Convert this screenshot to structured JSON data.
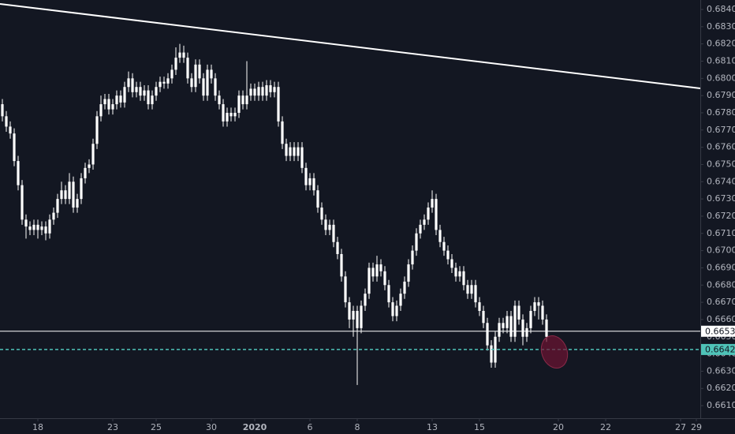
{
  "chart_data": {
    "type": "candlestick",
    "color": "#ffffff",
    "xlim": [
      -0.6,
      177
    ],
    "ylim": [
      0.66027,
      0.68455
    ],
    "yticks": [
      {
        "value": 0.684,
        "label": "0.68400"
      },
      {
        "value": 0.683,
        "label": "0.68300"
      },
      {
        "value": 0.682,
        "label": "0.68200"
      },
      {
        "value": 0.681,
        "label": "0.68100"
      },
      {
        "value": 0.68,
        "label": "0.68000"
      },
      {
        "value": 0.679,
        "label": "0.67900"
      },
      {
        "value": 0.678,
        "label": "0.67800"
      },
      {
        "value": 0.677,
        "label": "0.67700"
      },
      {
        "value": 0.676,
        "label": "0.67600"
      },
      {
        "value": 0.675,
        "label": "0.67500"
      },
      {
        "value": 0.674,
        "label": "0.67400"
      },
      {
        "value": 0.673,
        "label": "0.67300"
      },
      {
        "value": 0.672,
        "label": "0.67200"
      },
      {
        "value": 0.671,
        "label": "0.67100"
      },
      {
        "value": 0.67,
        "label": "0.67000"
      },
      {
        "value": 0.669,
        "label": "0.66900"
      },
      {
        "value": 0.668,
        "label": "0.66800"
      },
      {
        "value": 0.667,
        "label": "0.66700"
      },
      {
        "value": 0.666,
        "label": "0.66600"
      },
      {
        "value": 0.665,
        "label": "0.66500"
      },
      {
        "value": 0.664,
        "label": "0.66400"
      },
      {
        "value": 0.663,
        "label": "0.66300"
      },
      {
        "value": 0.662,
        "label": "0.66200"
      },
      {
        "value": 0.661,
        "label": "0.66100"
      }
    ],
    "xticks": [
      {
        "value": 9,
        "label": "18"
      },
      {
        "value": 28,
        "label": "23"
      },
      {
        "value": 39,
        "label": "25"
      },
      {
        "value": 53,
        "label": "30"
      },
      {
        "value": 64,
        "label": "2020"
      },
      {
        "value": 78,
        "label": "6"
      },
      {
        "value": 90,
        "label": "8"
      },
      {
        "value": 109,
        "label": "13"
      },
      {
        "value": 121,
        "label": "15"
      },
      {
        "value": 141,
        "label": "20"
      },
      {
        "value": 153,
        "label": "22"
      },
      {
        "value": 172,
        "label": "27"
      },
      {
        "value": 176,
        "label": "29"
      }
    ],
    "trendline": {
      "start": 0.68432,
      "end": 0.67942,
      "color": "#ffffff"
    },
    "price_lines": [
      {
        "value": 0.66532,
        "label": "0.66532",
        "color": "#ffffff",
        "style": "solid"
      },
      {
        "value": 0.66426,
        "label": "0.66426",
        "color": "#4fc3b8",
        "style": "dashed"
      }
    ],
    "candles": [
      [
        0.6785,
        0.6788,
        0.6775,
        0.6778
      ],
      [
        0.6778,
        0.6781,
        0.6769,
        0.6772
      ],
      [
        0.6772,
        0.6775,
        0.6765,
        0.6768
      ],
      [
        0.6768,
        0.6771,
        0.6749,
        0.6752
      ],
      [
        0.6752,
        0.6755,
        0.6735,
        0.6738
      ],
      [
        0.6738,
        0.6741,
        0.6715,
        0.6718
      ],
      [
        0.6718,
        0.6721,
        0.6707,
        0.6714
      ],
      [
        0.6714,
        0.6717,
        0.6709,
        0.6712
      ],
      [
        0.6712,
        0.6718,
        0.6709,
        0.6715
      ],
      [
        0.6715,
        0.6718,
        0.6707,
        0.6712
      ],
      [
        0.6712,
        0.6717,
        0.6709,
        0.6714
      ],
      [
        0.6714,
        0.6717,
        0.6706,
        0.671
      ],
      [
        0.671,
        0.6721,
        0.6707,
        0.6718
      ],
      [
        0.6718,
        0.6725,
        0.6715,
        0.6722
      ],
      [
        0.6722,
        0.6733,
        0.6719,
        0.673
      ],
      [
        0.673,
        0.674,
        0.6727,
        0.6735
      ],
      [
        0.6735,
        0.6738,
        0.6727,
        0.673
      ],
      [
        0.673,
        0.6745,
        0.6727,
        0.674
      ],
      [
        0.674,
        0.6743,
        0.6722,
        0.6725
      ],
      [
        0.6725,
        0.6733,
        0.6722,
        0.673
      ],
      [
        0.673,
        0.6745,
        0.6727,
        0.6742
      ],
      [
        0.6742,
        0.6751,
        0.6739,
        0.6748
      ],
      [
        0.6748,
        0.6753,
        0.6745,
        0.675
      ],
      [
        0.675,
        0.6765,
        0.6747,
        0.6762
      ],
      [
        0.6762,
        0.6781,
        0.6759,
        0.6778
      ],
      [
        0.6778,
        0.679,
        0.6775,
        0.6785
      ],
      [
        0.6785,
        0.6791,
        0.6782,
        0.6788
      ],
      [
        0.6788,
        0.6791,
        0.6779,
        0.6782
      ],
      [
        0.6782,
        0.6788,
        0.6779,
        0.6785
      ],
      [
        0.6785,
        0.6793,
        0.6782,
        0.679
      ],
      [
        0.679,
        0.6793,
        0.6783,
        0.6786
      ],
      [
        0.6786,
        0.6798,
        0.6783,
        0.6795
      ],
      [
        0.6795,
        0.6804,
        0.6792,
        0.68
      ],
      [
        0.68,
        0.6803,
        0.6789,
        0.6792
      ],
      [
        0.6792,
        0.6798,
        0.6789,
        0.6795
      ],
      [
        0.6795,
        0.6798,
        0.6787,
        0.679
      ],
      [
        0.679,
        0.6796,
        0.6787,
        0.6793
      ],
      [
        0.6793,
        0.6796,
        0.6782,
        0.6785
      ],
      [
        0.6785,
        0.6793,
        0.6782,
        0.679
      ],
      [
        0.679,
        0.6798,
        0.6787,
        0.6795
      ],
      [
        0.6795,
        0.6801,
        0.6792,
        0.6798
      ],
      [
        0.6798,
        0.6801,
        0.6794,
        0.6797
      ],
      [
        0.6797,
        0.6803,
        0.6794,
        0.68
      ],
      [
        0.68,
        0.6808,
        0.6797,
        0.6805
      ],
      [
        0.6805,
        0.6818,
        0.6802,
        0.6812
      ],
      [
        0.6812,
        0.682,
        0.6809,
        0.6815
      ],
      [
        0.6815,
        0.6819,
        0.6809,
        0.6812
      ],
      [
        0.6812,
        0.6815,
        0.6797,
        0.68
      ],
      [
        0.68,
        0.6803,
        0.6792,
        0.6795
      ],
      [
        0.6795,
        0.6811,
        0.6792,
        0.6808
      ],
      [
        0.6808,
        0.6811,
        0.6797,
        0.68
      ],
      [
        0.68,
        0.6803,
        0.6787,
        0.679
      ],
      [
        0.679,
        0.6808,
        0.6787,
        0.6805
      ],
      [
        0.6805,
        0.6808,
        0.6797,
        0.68
      ],
      [
        0.68,
        0.6803,
        0.6787,
        0.679
      ],
      [
        0.679,
        0.6793,
        0.6782,
        0.6785
      ],
      [
        0.6785,
        0.6788,
        0.6772,
        0.6775
      ],
      [
        0.6775,
        0.6783,
        0.6772,
        0.678
      ],
      [
        0.678,
        0.6783,
        0.6775,
        0.6778
      ],
      [
        0.6778,
        0.6783,
        0.6775,
        0.678
      ],
      [
        0.678,
        0.6793,
        0.6777,
        0.679
      ],
      [
        0.679,
        0.6793,
        0.6782,
        0.6785
      ],
      [
        0.6785,
        0.681,
        0.6782,
        0.679
      ],
      [
        0.679,
        0.6797,
        0.6787,
        0.6794
      ],
      [
        0.6794,
        0.6797,
        0.6787,
        0.679
      ],
      [
        0.679,
        0.6798,
        0.6787,
        0.6795
      ],
      [
        0.6795,
        0.6798,
        0.6787,
        0.679
      ],
      [
        0.679,
        0.6799,
        0.6787,
        0.6796
      ],
      [
        0.6796,
        0.6799,
        0.6789,
        0.6792
      ],
      [
        0.6792,
        0.6798,
        0.6789,
        0.6795
      ],
      [
        0.6795,
        0.6798,
        0.6772,
        0.6775
      ],
      [
        0.6775,
        0.6778,
        0.6759,
        0.6762
      ],
      [
        0.6762,
        0.6765,
        0.6752,
        0.6755
      ],
      [
        0.6755,
        0.6763,
        0.6752,
        0.676
      ],
      [
        0.676,
        0.6763,
        0.6752,
        0.6755
      ],
      [
        0.6755,
        0.6763,
        0.6752,
        0.676
      ],
      [
        0.676,
        0.6763,
        0.6745,
        0.6748
      ],
      [
        0.6748,
        0.6751,
        0.6735,
        0.6738
      ],
      [
        0.6738,
        0.6745,
        0.6735,
        0.6742
      ],
      [
        0.6742,
        0.6745,
        0.6732,
        0.6735
      ],
      [
        0.6735,
        0.6738,
        0.6722,
        0.6725
      ],
      [
        0.6725,
        0.6728,
        0.6715,
        0.6718
      ],
      [
        0.6718,
        0.6721,
        0.6709,
        0.6712
      ],
      [
        0.6712,
        0.6718,
        0.6709,
        0.6715
      ],
      [
        0.6715,
        0.6718,
        0.6702,
        0.6705
      ],
      [
        0.6705,
        0.6708,
        0.6695,
        0.6698
      ],
      [
        0.6698,
        0.6701,
        0.6682,
        0.6685
      ],
      [
        0.6685,
        0.6688,
        0.6667,
        0.667
      ],
      [
        0.667,
        0.6673,
        0.6655,
        0.666
      ],
      [
        0.666,
        0.6668,
        0.665,
        0.6665
      ],
      [
        0.6665,
        0.6668,
        0.6622,
        0.6655
      ],
      [
        0.6655,
        0.6671,
        0.6652,
        0.6668
      ],
      [
        0.6668,
        0.6678,
        0.6665,
        0.6675
      ],
      [
        0.6675,
        0.6693,
        0.6672,
        0.669
      ],
      [
        0.669,
        0.6693,
        0.6682,
        0.6685
      ],
      [
        0.6685,
        0.6697,
        0.6682,
        0.6692
      ],
      [
        0.6692,
        0.6695,
        0.6685,
        0.6688
      ],
      [
        0.6688,
        0.6691,
        0.6677,
        0.668
      ],
      [
        0.668,
        0.6683,
        0.6667,
        0.667
      ],
      [
        0.667,
        0.6673,
        0.6659,
        0.6662
      ],
      [
        0.6662,
        0.6671,
        0.6659,
        0.6668
      ],
      [
        0.6668,
        0.6678,
        0.6665,
        0.6675
      ],
      [
        0.6675,
        0.6685,
        0.6672,
        0.6682
      ],
      [
        0.6682,
        0.6695,
        0.6679,
        0.6692
      ],
      [
        0.6692,
        0.6703,
        0.6689,
        0.67
      ],
      [
        0.67,
        0.6713,
        0.6697,
        0.671
      ],
      [
        0.671,
        0.6718,
        0.6707,
        0.6715
      ],
      [
        0.6715,
        0.6721,
        0.6712,
        0.6718
      ],
      [
        0.6718,
        0.6728,
        0.6715,
        0.6725
      ],
      [
        0.6725,
        0.6735,
        0.6722,
        0.673
      ],
      [
        0.673,
        0.6733,
        0.6709,
        0.6712
      ],
      [
        0.6712,
        0.6715,
        0.6702,
        0.6705
      ],
      [
        0.6705,
        0.6708,
        0.6697,
        0.67
      ],
      [
        0.67,
        0.6703,
        0.6692,
        0.6695
      ],
      [
        0.6695,
        0.6698,
        0.6687,
        0.669
      ],
      [
        0.669,
        0.6693,
        0.6682,
        0.6685
      ],
      [
        0.6685,
        0.6691,
        0.6682,
        0.6688
      ],
      [
        0.6688,
        0.6691,
        0.6677,
        0.668
      ],
      [
        0.668,
        0.6683,
        0.6672,
        0.6675
      ],
      [
        0.6675,
        0.6683,
        0.6672,
        0.668
      ],
      [
        0.668,
        0.6683,
        0.6667,
        0.667
      ],
      [
        0.667,
        0.6673,
        0.6662,
        0.6665
      ],
      [
        0.6665,
        0.6668,
        0.6655,
        0.6658
      ],
      [
        0.6658,
        0.6661,
        0.6642,
        0.6645
      ],
      [
        0.6645,
        0.6648,
        0.6632,
        0.6635
      ],
      [
        0.6635,
        0.6653,
        0.6632,
        0.665
      ],
      [
        0.665,
        0.6661,
        0.6647,
        0.6658
      ],
      [
        0.6658,
        0.6661,
        0.6652,
        0.6655
      ],
      [
        0.6655,
        0.6665,
        0.6652,
        0.6662
      ],
      [
        0.6662,
        0.6665,
        0.6647,
        0.665
      ],
      [
        0.665,
        0.6671,
        0.6647,
        0.6668
      ],
      [
        0.6668,
        0.6671,
        0.6657,
        0.666
      ],
      [
        0.666,
        0.6663,
        0.6645,
        0.665
      ],
      [
        0.665,
        0.6658,
        0.6647,
        0.6655
      ],
      [
        0.6655,
        0.6668,
        0.6652,
        0.6665
      ],
      [
        0.6665,
        0.6673,
        0.6662,
        0.667
      ],
      [
        0.667,
        0.6673,
        0.666,
        0.6668
      ],
      [
        0.6668,
        0.6671,
        0.6657,
        0.666
      ],
      [
        0.666,
        0.6663,
        0.6647,
        0.665
      ]
    ]
  }
}
